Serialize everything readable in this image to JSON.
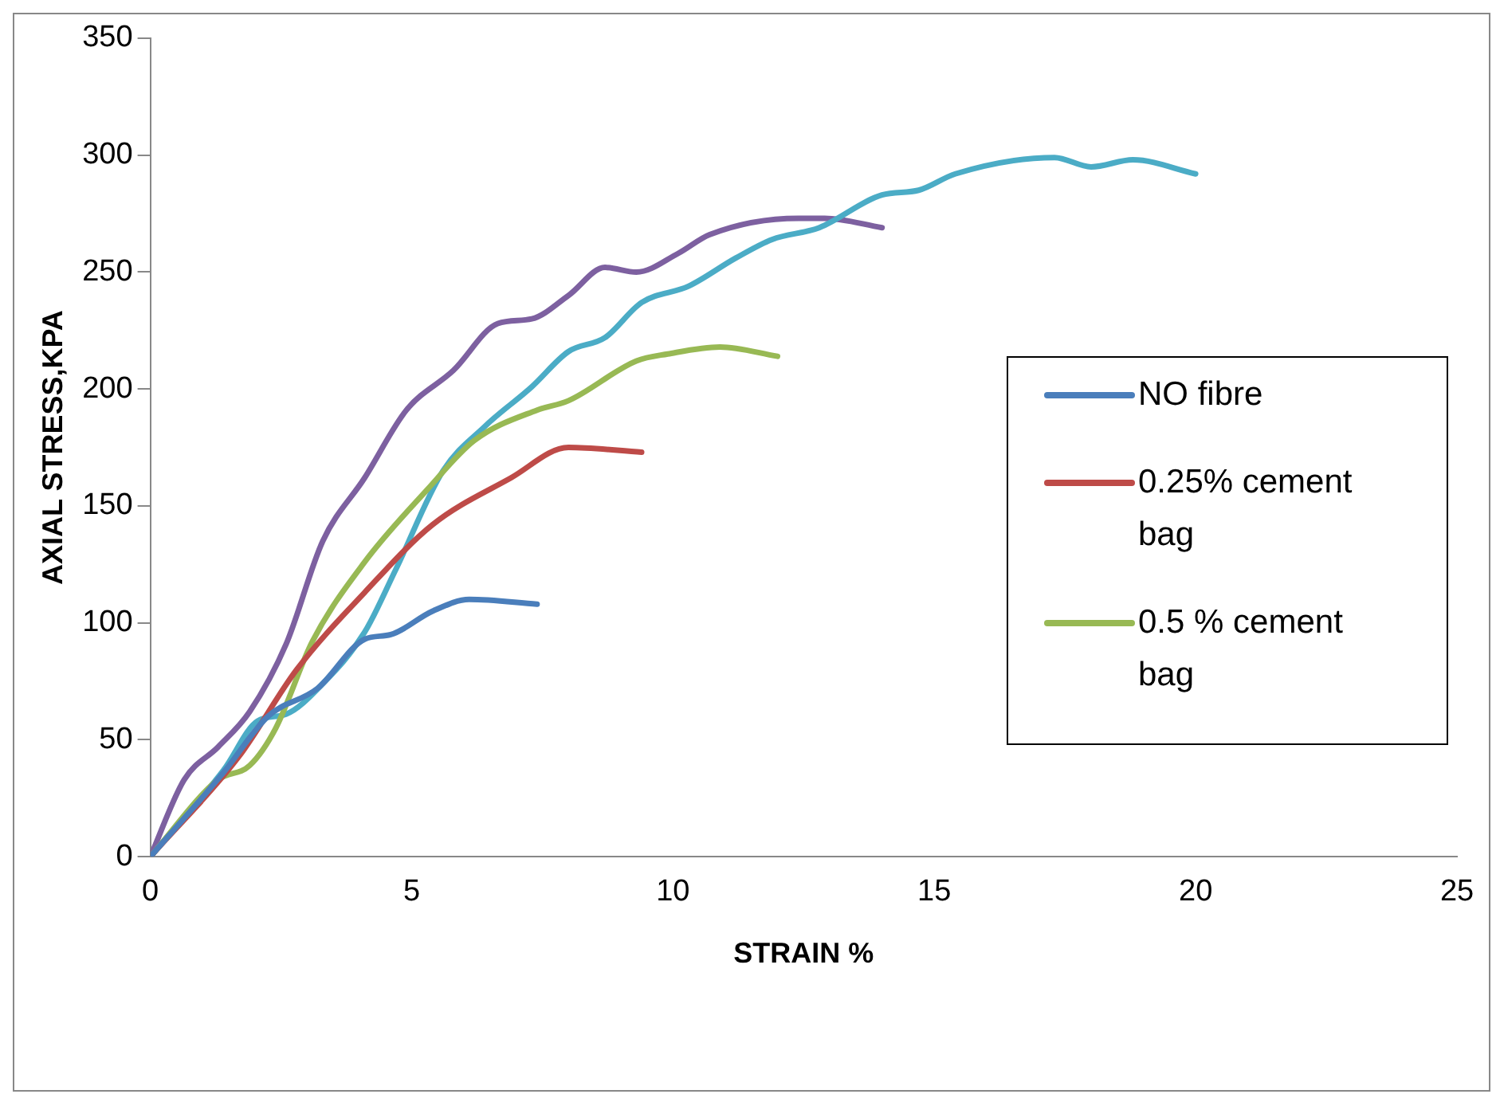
{
  "chart_data": {
    "type": "line",
    "xlabel": "STRAIN %",
    "ylabel": "AXIAL STRESS,KPA",
    "xlim": [
      0,
      25
    ],
    "xticks": [
      0,
      5,
      10,
      15,
      20,
      25
    ],
    "ylim": [
      0,
      350
    ],
    "yticks": [
      0,
      50,
      100,
      150,
      200,
      250,
      300,
      350
    ],
    "grid": false,
    "legend": "right",
    "marker": "none",
    "line_style": "solid",
    "series": [
      {
        "name": "NO fibre",
        "color": "#4a7ebb",
        "x": [
          0,
          1.4,
          2.25,
          3.2,
          4.1,
          4.6,
          5.4,
          6.1,
          7.4
        ],
        "values": [
          0,
          36,
          60,
          72,
          93,
          95,
          105,
          110,
          108
        ]
      },
      {
        "name": "0.25% cement bag",
        "color": "#be4b48",
        "x": [
          0,
          1.7,
          2.8,
          4.1,
          5.4,
          6.9,
          8.0,
          9.4
        ],
        "values": [
          0,
          43,
          80,
          113,
          142,
          162,
          175,
          173
        ]
      },
      {
        "name": "0.5 % cement bag",
        "color": "#98b954",
        "x": [
          0,
          1.3,
          1.9,
          2.4,
          3.1,
          4.1,
          5.3,
          6.2,
          7.4,
          8.0,
          9.3,
          9.9,
          10.9,
          12.0
        ],
        "values": [
          0,
          33,
          39,
          55,
          92,
          126,
          157,
          178,
          191,
          195,
          212,
          215,
          218,
          214
        ]
      },
      {
        "color": "#4bacc6",
        "x": [
          0,
          1.4,
          2.05,
          2.6,
          3.3,
          4.1,
          4.7,
          5.6,
          6.4,
          7.3,
          8.0,
          8.7,
          9.4,
          10.3,
          11.2,
          11.9,
          12.8,
          14.0,
          14.7,
          15.4,
          17.3,
          18.0,
          18.8,
          20.0
        ],
        "values": [
          0,
          37,
          58,
          61,
          74,
          96,
          123,
          165,
          184,
          201,
          216,
          222,
          237,
          244,
          256,
          264,
          269,
          283,
          285,
          292,
          299,
          295,
          298,
          292
        ]
      },
      {
        "color": "#7d60a0",
        "x": [
          0,
          0.65,
          1.3,
          1.9,
          2.6,
          3.3,
          4.1,
          4.9,
          5.8,
          6.65,
          7.3,
          8.0,
          8.7,
          9.3,
          10.1,
          10.7,
          12.4,
          12.9,
          14.0
        ],
        "values": [
          0,
          33,
          47,
          62,
          91,
          135,
          162,
          191,
          208,
          228,
          230,
          240,
          252,
          250,
          258,
          266,
          273,
          273,
          269
        ]
      }
    ]
  }
}
